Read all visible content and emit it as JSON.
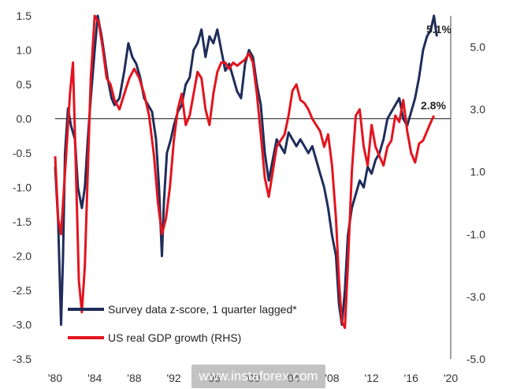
{
  "chart_data": {
    "type": "line",
    "x_tick_labels": [
      "'80",
      "'84",
      "'88",
      "'92",
      "'96",
      "'00",
      "'04",
      "'08",
      "'12",
      "'16",
      "'20"
    ],
    "left_ticks": [
      "1.5",
      "1.0",
      "0.5",
      "0.0",
      "-0.5",
      "-1.0",
      "-1.5",
      "-2.0",
      "-2.5",
      "-3.0",
      "-3.5"
    ],
    "right_ticks": [
      "5.0",
      "3.0",
      "1.0",
      "-1.0",
      "-3.0",
      "-5.0"
    ],
    "left_ylim": [
      -3.5,
      1.5
    ],
    "right_ylim": [
      -5.0,
      6.0
    ],
    "xlim": [
      1980,
      2020
    ],
    "end_labels": {
      "survey": "5.1%",
      "gdp": "2.8%"
    },
    "legend_placement": "bottom-left",
    "colors": {
      "survey": "#1f2d5a",
      "gdp": "#e3141e"
    },
    "series": [
      {
        "name": "Survey data z-score, 1 quarter lagged*",
        "axis": "left",
        "points": [
          [
            1980.0,
            -0.7
          ],
          [
            1980.3,
            -1.5
          ],
          [
            1980.6,
            -3.0
          ],
          [
            1980.8,
            -2.0
          ],
          [
            1981.0,
            -0.5
          ],
          [
            1981.3,
            0.15
          ],
          [
            1981.6,
            -0.1
          ],
          [
            1982.0,
            -0.3
          ],
          [
            1982.3,
            -1.0
          ],
          [
            1982.7,
            -1.3
          ],
          [
            1983.0,
            -1.0
          ],
          [
            1983.3,
            -0.3
          ],
          [
            1983.6,
            0.3
          ],
          [
            1984.0,
            1.0
          ],
          [
            1984.3,
            1.5
          ],
          [
            1984.7,
            1.2
          ],
          [
            1985.0,
            0.9
          ],
          [
            1985.3,
            0.6
          ],
          [
            1985.7,
            0.3
          ],
          [
            1986.0,
            0.2
          ],
          [
            1986.5,
            0.3
          ],
          [
            1987.0,
            0.7
          ],
          [
            1987.4,
            1.1
          ],
          [
            1987.8,
            0.9
          ],
          [
            1988.2,
            0.8
          ],
          [
            1988.6,
            0.6
          ],
          [
            1989.0,
            0.3
          ],
          [
            1989.4,
            0.2
          ],
          [
            1989.8,
            0.1
          ],
          [
            1990.2,
            -0.3
          ],
          [
            1990.5,
            -1.0
          ],
          [
            1990.8,
            -2.0
          ],
          [
            1991.0,
            -1.2
          ],
          [
            1991.3,
            -0.5
          ],
          [
            1991.7,
            -0.3
          ],
          [
            1992.0,
            -0.1
          ],
          [
            1992.4,
            0.1
          ],
          [
            1992.8,
            0.2
          ],
          [
            1993.2,
            0.5
          ],
          [
            1993.6,
            0.6
          ],
          [
            1994.0,
            1.0
          ],
          [
            1994.4,
            1.1
          ],
          [
            1994.8,
            1.3
          ],
          [
            1995.2,
            0.9
          ],
          [
            1995.6,
            1.2
          ],
          [
            1996.0,
            1.1
          ],
          [
            1996.4,
            1.3
          ],
          [
            1996.8,
            1.0
          ],
          [
            1997.2,
            0.7
          ],
          [
            1997.6,
            0.8
          ],
          [
            1998.0,
            0.6
          ],
          [
            1998.4,
            0.4
          ],
          [
            1998.8,
            0.3
          ],
          [
            1999.2,
            0.8
          ],
          [
            1999.6,
            1.0
          ],
          [
            2000.0,
            0.9
          ],
          [
            2000.4,
            0.5
          ],
          [
            2000.8,
            0.2
          ],
          [
            2001.2,
            -0.5
          ],
          [
            2001.6,
            -0.9
          ],
          [
            2002.0,
            -0.6
          ],
          [
            2002.4,
            -0.3
          ],
          [
            2002.8,
            -0.4
          ],
          [
            2003.2,
            -0.5
          ],
          [
            2003.6,
            -0.2
          ],
          [
            2004.0,
            -0.3
          ],
          [
            2004.4,
            -0.4
          ],
          [
            2004.8,
            -0.3
          ],
          [
            2005.2,
            -0.4
          ],
          [
            2005.6,
            -0.5
          ],
          [
            2006.0,
            -0.4
          ],
          [
            2006.4,
            -0.6
          ],
          [
            2006.8,
            -0.8
          ],
          [
            2007.2,
            -1.0
          ],
          [
            2007.6,
            -1.3
          ],
          [
            2008.0,
            -1.7
          ],
          [
            2008.4,
            -2.0
          ],
          [
            2008.7,
            -2.7
          ],
          [
            2009.0,
            -3.0
          ],
          [
            2009.3,
            -2.5
          ],
          [
            2009.6,
            -1.7
          ],
          [
            2010.0,
            -1.3
          ],
          [
            2010.4,
            -1.1
          ],
          [
            2010.8,
            -0.9
          ],
          [
            2011.2,
            -1.0
          ],
          [
            2011.6,
            -0.7
          ],
          [
            2012.0,
            -0.8
          ],
          [
            2012.4,
            -0.6
          ],
          [
            2012.8,
            -0.5
          ],
          [
            2013.2,
            -0.3
          ],
          [
            2013.6,
            0.0
          ],
          [
            2014.0,
            0.1
          ],
          [
            2014.4,
            0.2
          ],
          [
            2014.8,
            0.3
          ],
          [
            2015.2,
            0.0
          ],
          [
            2015.6,
            -0.1
          ],
          [
            2016.0,
            0.1
          ],
          [
            2016.4,
            0.3
          ],
          [
            2016.8,
            0.6
          ],
          [
            2017.2,
            1.0
          ],
          [
            2017.6,
            1.2
          ],
          [
            2018.0,
            1.3
          ],
          [
            2018.3,
            1.5
          ],
          [
            2018.6,
            1.2
          ]
        ]
      },
      {
        "name": "US real GDP growth (RHS)",
        "axis": "right",
        "points": [
          [
            1980.0,
            1.5
          ],
          [
            1980.3,
            -0.5
          ],
          [
            1980.6,
            -1.0
          ],
          [
            1980.9,
            0.5
          ],
          [
            1981.2,
            2.0
          ],
          [
            1981.5,
            3.5
          ],
          [
            1981.8,
            4.5
          ],
          [
            1982.1,
            1.0
          ],
          [
            1982.4,
            -2.5
          ],
          [
            1982.7,
            -3.5
          ],
          [
            1983.0,
            -2.0
          ],
          [
            1983.3,
            1.0
          ],
          [
            1983.6,
            4.0
          ],
          [
            1984.0,
            6.0
          ],
          [
            1984.4,
            5.8
          ],
          [
            1984.8,
            5.0
          ],
          [
            1985.2,
            4.0
          ],
          [
            1985.6,
            3.8
          ],
          [
            1986.0,
            3.3
          ],
          [
            1986.5,
            3.0
          ],
          [
            1987.0,
            3.5
          ],
          [
            1987.5,
            4.0
          ],
          [
            1988.0,
            4.3
          ],
          [
            1988.5,
            4.0
          ],
          [
            1989.0,
            3.5
          ],
          [
            1989.5,
            2.8
          ],
          [
            1990.0,
            1.5
          ],
          [
            1990.4,
            0.0
          ],
          [
            1990.8,
            -1.0
          ],
          [
            1991.2,
            -0.5
          ],
          [
            1991.6,
            0.5
          ],
          [
            1992.0,
            2.0
          ],
          [
            1992.4,
            3.0
          ],
          [
            1992.8,
            3.5
          ],
          [
            1993.2,
            2.5
          ],
          [
            1993.6,
            2.8
          ],
          [
            1994.0,
            3.5
          ],
          [
            1994.4,
            4.2
          ],
          [
            1994.8,
            4.0
          ],
          [
            1995.2,
            3.0
          ],
          [
            1995.6,
            2.5
          ],
          [
            1996.0,
            3.5
          ],
          [
            1996.4,
            4.2
          ],
          [
            1996.8,
            4.5
          ],
          [
            1997.2,
            4.5
          ],
          [
            1997.6,
            4.3
          ],
          [
            1998.0,
            4.5
          ],
          [
            1998.4,
            4.4
          ],
          [
            1998.8,
            4.5
          ],
          [
            1999.2,
            4.6
          ],
          [
            1999.6,
            4.8
          ],
          [
            2000.0,
            4.5
          ],
          [
            2000.4,
            3.5
          ],
          [
            2000.8,
            2.2
          ],
          [
            2001.2,
            0.8
          ],
          [
            2001.6,
            0.2
          ],
          [
            2002.0,
            1.0
          ],
          [
            2002.4,
            1.8
          ],
          [
            2002.8,
            2.0
          ],
          [
            2003.2,
            2.2
          ],
          [
            2003.6,
            2.8
          ],
          [
            2004.0,
            3.6
          ],
          [
            2004.4,
            3.8
          ],
          [
            2004.8,
            3.3
          ],
          [
            2005.2,
            3.2
          ],
          [
            2005.6,
            3.0
          ],
          [
            2006.0,
            2.7
          ],
          [
            2006.4,
            2.5
          ],
          [
            2006.8,
            2.3
          ],
          [
            2007.2,
            1.8
          ],
          [
            2007.6,
            2.2
          ],
          [
            2008.0,
            1.2
          ],
          [
            2008.4,
            -0.5
          ],
          [
            2008.7,
            -2.5
          ],
          [
            2009.0,
            -3.8
          ],
          [
            2009.3,
            -4.0
          ],
          [
            2009.6,
            -2.0
          ],
          [
            2010.0,
            1.0
          ],
          [
            2010.4,
            2.8
          ],
          [
            2010.8,
            3.0
          ],
          [
            2011.2,
            1.8
          ],
          [
            2011.6,
            1.2
          ],
          [
            2012.0,
            2.5
          ],
          [
            2012.4,
            1.8
          ],
          [
            2012.8,
            1.5
          ],
          [
            2013.2,
            1.2
          ],
          [
            2013.6,
            1.8
          ],
          [
            2014.0,
            2.0
          ],
          [
            2014.4,
            2.8
          ],
          [
            2014.8,
            2.6
          ],
          [
            2015.2,
            3.3
          ],
          [
            2015.6,
            2.3
          ],
          [
            2016.0,
            1.6
          ],
          [
            2016.4,
            1.3
          ],
          [
            2016.8,
            1.9
          ],
          [
            2017.2,
            2.0
          ],
          [
            2017.6,
            2.3
          ],
          [
            2018.0,
            2.6
          ],
          [
            2018.3,
            2.8
          ]
        ]
      }
    ]
  },
  "watermark": "www.instaforex.com"
}
